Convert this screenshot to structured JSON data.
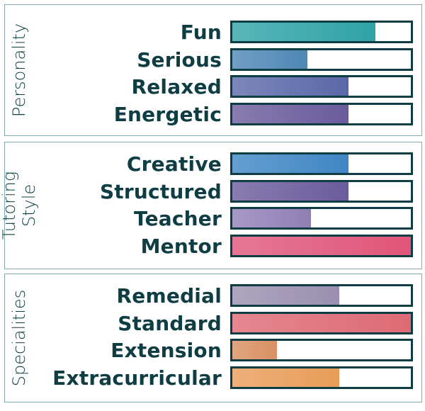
{
  "chart_data": {
    "type": "bar",
    "orientation": "horizontal",
    "xlim": [
      0,
      1
    ],
    "groups": [
      {
        "title": "Personality",
        "categories": [
          "Fun",
          "Serious",
          "Relaxed",
          "Energetic"
        ],
        "values": [
          0.8,
          0.42,
          0.65,
          0.65
        ],
        "colors": [
          "#2fa3a6",
          "#4e86b6",
          "#5a68a8",
          "#6b5b9c"
        ]
      },
      {
        "title": "Tutoring\nStyle",
        "categories": [
          "Creative",
          "Structured",
          "Teacher",
          "Mentor"
        ],
        "values": [
          0.65,
          0.65,
          0.44,
          1.0
        ],
        "colors": [
          "#3f86c4",
          "#6b5b9c",
          "#8f7fb5",
          "#e0557a"
        ]
      },
      {
        "title": "Specialities",
        "categories": [
          "Remedial",
          "Standard",
          "Extension",
          "Extracurricular"
        ],
        "values": [
          0.6,
          1.0,
          0.25,
          0.6
        ],
        "colors": [
          "#9a8fb0",
          "#dd6a74",
          "#d98f63",
          "#e89c58"
        ]
      }
    ]
  }
}
